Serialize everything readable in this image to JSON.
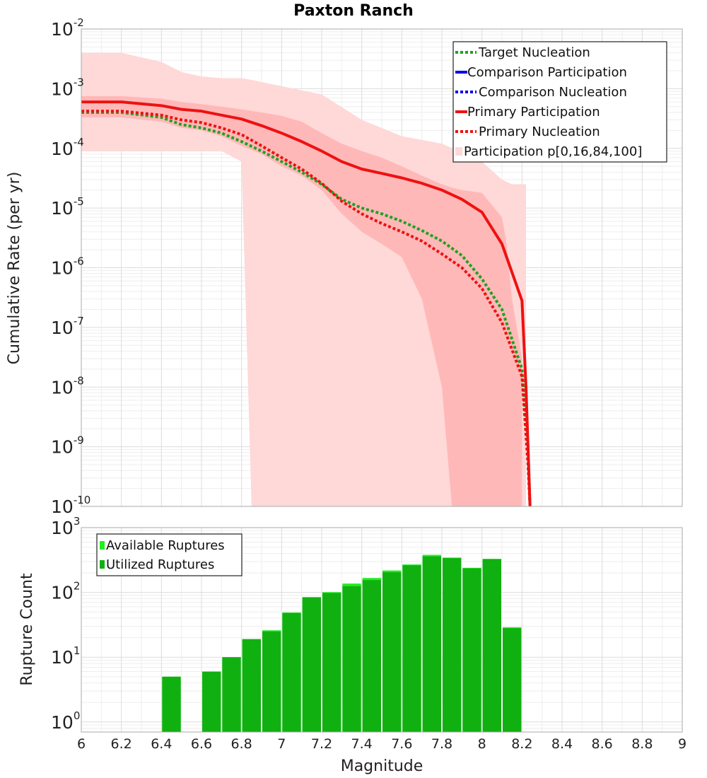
{
  "chart_data": [
    {
      "type": "line",
      "title": "Paxton Ranch",
      "xlabel": "",
      "ylabel": "Cumulative Rate (per yr)",
      "xlim": [
        6,
        9
      ],
      "ylim": [
        1e-10,
        0.01
      ],
      "yscale": "log",
      "grid": true,
      "legend_position": "top-right",
      "legend": [
        "Target Nucleation",
        "Comparison Participation",
        "Comparison Nucleation",
        "Primary Participation",
        "Primary Nucleation",
        "Participation p[0,16,84,100]"
      ],
      "colors": {
        "target_nucleation": "#22a022",
        "comparison": "#0000ee",
        "primary": "#ee1111",
        "band_outer": "#ffd8d8",
        "band_inner": "#ffb8b8"
      },
      "series": [
        {
          "name": "Target Nucleation",
          "style": "dotted",
          "x": [
            6.0,
            6.2,
            6.4,
            6.5,
            6.6,
            6.7,
            6.8,
            6.9,
            7.0,
            7.1,
            7.2,
            7.3,
            7.4,
            7.5,
            7.6,
            7.7,
            7.8,
            7.9,
            8.0,
            8.1,
            8.2,
            8.23,
            8.24
          ],
          "y": [
            0.0004,
            0.0004,
            0.00033,
            0.00025,
            0.00022,
            0.00018,
            0.00013,
            9e-05,
            6e-05,
            4e-05,
            2.5e-05,
            1.4e-05,
            1e-05,
            8e-06,
            6e-06,
            4.2e-06,
            2.8e-06,
            1.6e-06,
            6.5e-07,
            2e-07,
            2e-08,
            1e-09,
            1e-10
          ]
        },
        {
          "name": "Primary Participation",
          "style": "solid",
          "x": [
            6.0,
            6.2,
            6.4,
            6.5,
            6.6,
            6.7,
            6.8,
            6.9,
            7.0,
            7.1,
            7.2,
            7.3,
            7.4,
            7.5,
            7.6,
            7.7,
            7.8,
            7.9,
            8.0,
            8.1,
            8.2,
            8.22,
            8.24
          ],
          "y": [
            0.0006,
            0.0006,
            0.00052,
            0.00045,
            0.00042,
            0.00036,
            0.00031,
            0.00024,
            0.00018,
            0.00013,
            9e-05,
            6e-05,
            4.5e-05,
            3.8e-05,
            3.2e-05,
            2.6e-05,
            2e-05,
            1.4e-05,
            8.5e-06,
            2.5e-06,
            2.8e-07,
            1e-08,
            1e-10
          ]
        },
        {
          "name": "Primary Nucleation",
          "style": "dotted",
          "x": [
            6.0,
            6.2,
            6.4,
            6.5,
            6.6,
            6.7,
            6.8,
            6.9,
            7.0,
            7.1,
            7.2,
            7.3,
            7.4,
            7.5,
            7.6,
            7.7,
            7.8,
            7.9,
            8.0,
            8.1,
            8.2,
            8.23,
            8.24
          ],
          "y": [
            0.00042,
            0.00042,
            0.00036,
            0.0003,
            0.00027,
            0.00022,
            0.00017,
            0.00011,
            7e-05,
            4.5e-05,
            2.6e-05,
            1.3e-05,
            8e-06,
            5.5e-06,
            4e-06,
            2.8e-06,
            1.7e-06,
            1e-06,
            4.5e-07,
            1.2e-07,
            1.5e-08,
            5e-10,
            1e-10
          ]
        }
      ],
      "bands": [
        {
          "name": "p0-p100",
          "x": [
            6.0,
            6.2,
            6.4,
            6.5,
            6.6,
            6.7,
            6.8,
            6.85,
            7.0,
            7.2,
            7.4,
            7.6,
            7.8,
            8.0,
            8.1,
            8.15,
            8.2,
            8.22
          ],
          "upper": [
            0.004,
            0.004,
            0.0028,
            0.0019,
            0.0016,
            0.0015,
            0.0015,
            0.0014,
            0.0011,
            0.0008,
            0.0003,
            0.00016,
            0.00012,
            6e-05,
            3e-05,
            2.5e-05,
            2.5e-05,
            2.5e-05
          ],
          "lower": [
            9e-05,
            9e-05,
            9e-05,
            9e-05,
            9e-05,
            9e-05,
            6e-05,
            1e-10,
            1e-10,
            1e-10,
            1e-10,
            1e-10,
            1e-10,
            1e-10,
            1e-10,
            1e-10,
            1e-10,
            1e-10
          ]
        },
        {
          "name": "p16-p84",
          "x": [
            6.0,
            6.2,
            6.4,
            6.5,
            6.6,
            6.7,
            6.8,
            6.9,
            7.0,
            7.1,
            7.2,
            7.3,
            7.4,
            7.5,
            7.6,
            7.7,
            7.8,
            7.85,
            7.9,
            8.0,
            8.1,
            8.12,
            8.15,
            8.2
          ],
          "upper": [
            0.00075,
            0.00075,
            0.00068,
            0.0006,
            0.00055,
            0.0005,
            0.00045,
            0.0004,
            0.00035,
            0.00028,
            0.00018,
            0.00012,
            9e-05,
            7e-05,
            5e-05,
            3.5e-05,
            2.5e-05,
            2.2e-05,
            2e-05,
            1.8e-05,
            7e-06,
            3e-06,
            3e-07,
            3e-08
          ],
          "lower": [
            0.00033,
            0.00033,
            0.00028,
            0.00022,
            0.0002,
            0.00016,
            0.00011,
            8e-05,
            5e-05,
            3.5e-05,
            2e-05,
            8e-06,
            4e-06,
            2.5e-06,
            1.5e-06,
            3e-07,
            1e-08,
            1e-10,
            1e-10,
            1e-10,
            1e-10,
            1e-10,
            1e-10,
            1e-10
          ]
        }
      ],
      "yticks": [
        {
          "base": "10",
          "exp": "-2",
          "v": 0.01
        },
        {
          "base": "10",
          "exp": "-3",
          "v": 0.001
        },
        {
          "base": "10",
          "exp": "-4",
          "v": 0.0001
        },
        {
          "base": "10",
          "exp": "-5",
          "v": 1e-05
        },
        {
          "base": "10",
          "exp": "-6",
          "v": 1e-06
        },
        {
          "base": "10",
          "exp": "-7",
          "v": 1e-07
        },
        {
          "base": "10",
          "exp": "-8",
          "v": 1e-08
        },
        {
          "base": "10",
          "exp": "-9",
          "v": 1e-09
        },
        {
          "base": "10",
          "exp": "-10",
          "v": 1e-10
        }
      ]
    },
    {
      "type": "bar",
      "title": "",
      "xlabel": "Magnitude",
      "ylabel": "Rupture Count",
      "xlim": [
        6,
        9
      ],
      "ylim": [
        0.7,
        1000
      ],
      "yscale": "log",
      "grid": true,
      "legend_position": "top-left",
      "legend": [
        "Available Ruptures",
        "Utilized Ruptures"
      ],
      "colors": {
        "available": "#22ee22",
        "utilized": "#11b011"
      },
      "bin_width": 0.1,
      "x": [
        6.45,
        6.65,
        6.75,
        6.85,
        6.95,
        7.05,
        7.15,
        7.25,
        7.35,
        7.45,
        7.55,
        7.65,
        7.75,
        7.85,
        7.95,
        8.05,
        8.15
      ],
      "series": [
        {
          "name": "Available Ruptures",
          "values": [
            5,
            6,
            10,
            19,
            26,
            49,
            85,
            101,
            137,
            167,
            218,
            270,
            380,
            345,
            240,
            330,
            29
          ]
        },
        {
          "name": "Utilized Ruptures",
          "values": [
            5,
            6,
            10,
            19,
            25,
            48,
            83,
            98,
            125,
            155,
            205,
            262,
            360,
            338,
            235,
            325,
            28
          ]
        }
      ],
      "xticks": [
        "6",
        "6.2",
        "6.4",
        "6.6",
        "6.8",
        "7",
        "7.2",
        "7.4",
        "7.6",
        "7.8",
        "8",
        "8.2",
        "8.4",
        "8.6",
        "8.8",
        "9"
      ],
      "yticks": [
        {
          "base": "10",
          "exp": "0",
          "v": 1
        },
        {
          "base": "10",
          "exp": "1",
          "v": 10
        },
        {
          "base": "10",
          "exp": "2",
          "v": 100
        },
        {
          "base": "10",
          "exp": "3",
          "v": 1000
        }
      ]
    }
  ]
}
